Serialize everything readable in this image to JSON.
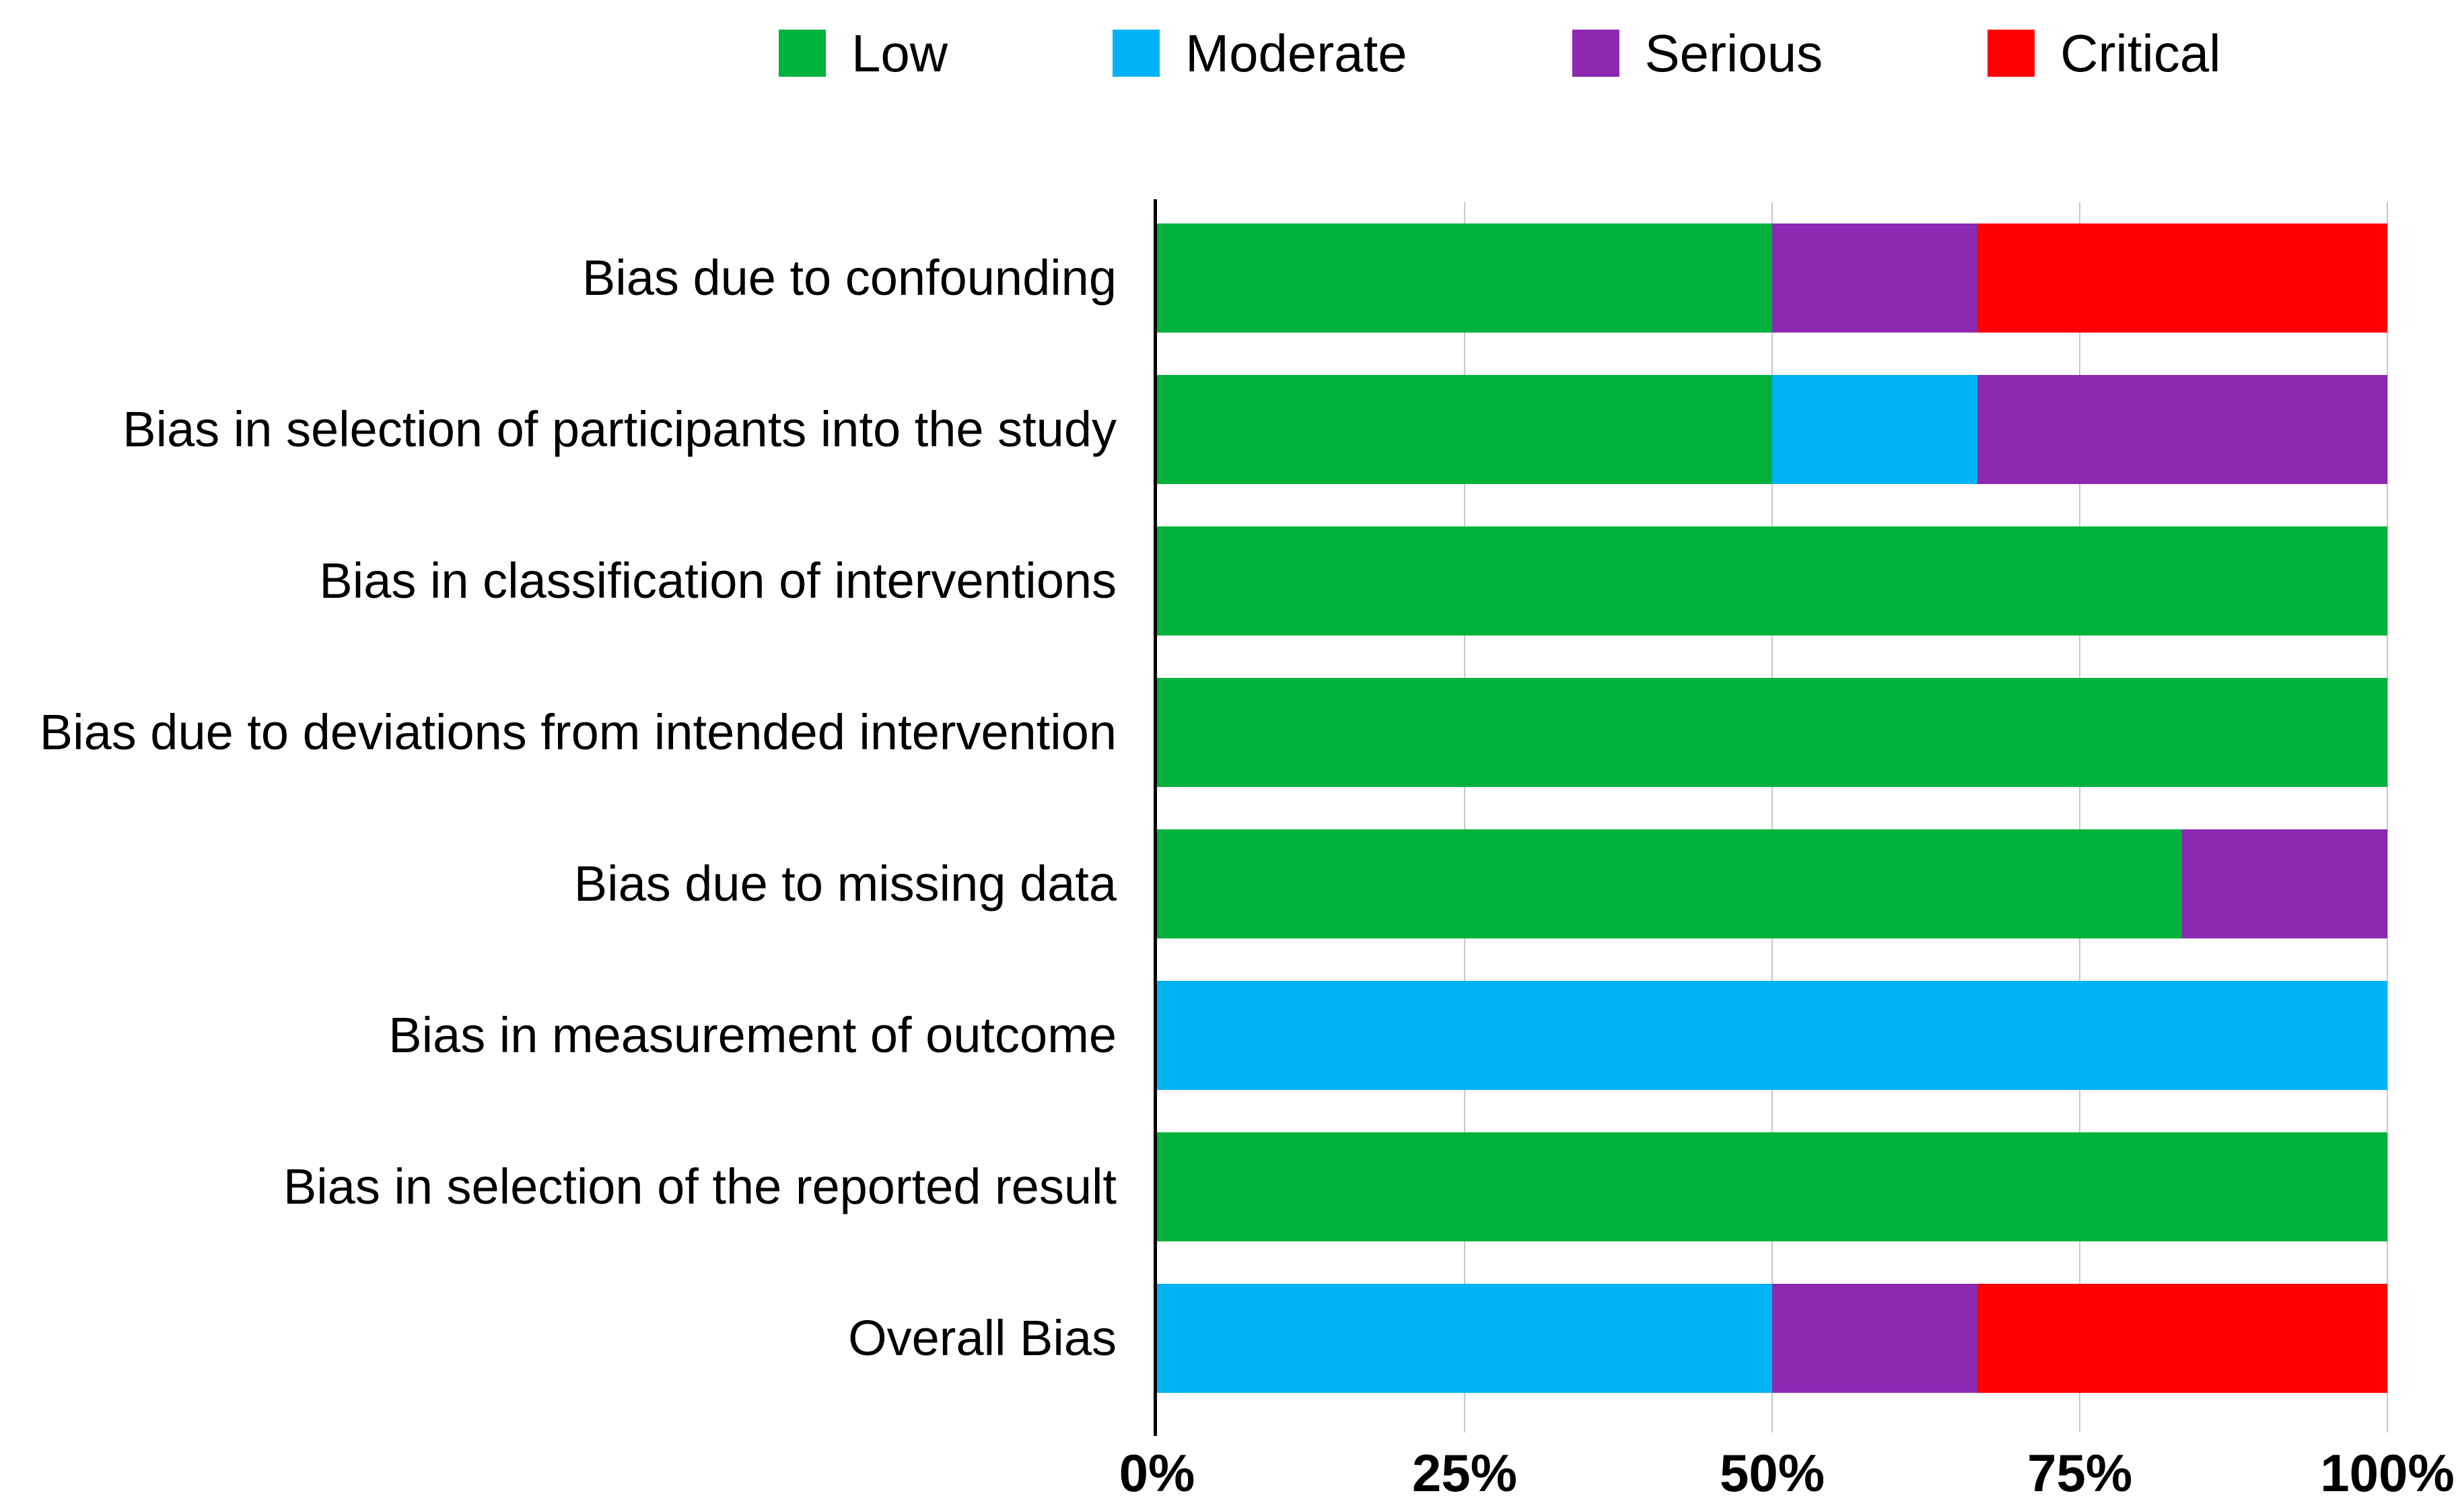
{
  "legend": {
    "items": [
      {
        "label": "Low",
        "color": "#00B23C"
      },
      {
        "label": "Moderate",
        "color": "#00B2F6"
      },
      {
        "label": "Serious",
        "color": "#8D28B1"
      },
      {
        "label": "Critical",
        "color": "#FF0000"
      }
    ]
  },
  "chart_data": {
    "type": "bar",
    "subtype": "horizontal_stacked_percentage",
    "title": "",
    "xlabel": "",
    "ylabel": "",
    "xlim": [
      0,
      100
    ],
    "grid": true,
    "legend_position": "top",
    "categories": [
      "Bias due to confounding",
      "Bias in selection of participants into the study",
      "Bias in classification of interventions",
      "Bias due to deviations from intended intervention",
      "Bias due to missing data",
      "Bias in measurement of outcome",
      "Bias in selection of the reported result",
      "Overall Bias"
    ],
    "series": [
      {
        "name": "Low",
        "color": "#00B23C",
        "values": [
          50,
          50,
          100,
          100,
          83.3,
          0,
          100,
          0
        ]
      },
      {
        "name": "Moderate",
        "color": "#00B2F6",
        "values": [
          0,
          16.7,
          0,
          0,
          0,
          100,
          0,
          50
        ]
      },
      {
        "name": "Serious",
        "color": "#8D28B1",
        "values": [
          16.7,
          33.3,
          0,
          0,
          16.7,
          0,
          0,
          16.7
        ]
      },
      {
        "name": "Critical",
        "color": "#FF0000",
        "values": [
          33.3,
          0,
          0,
          0,
          0,
          0,
          0,
          33.3
        ]
      }
    ],
    "x_ticks": [
      {
        "label": "0%",
        "pct": 0
      },
      {
        "label": "25%",
        "pct": 25
      },
      {
        "label": "50%",
        "pct": 50
      },
      {
        "label": "75%",
        "pct": 75
      },
      {
        "label": "100%",
        "pct": 100
      }
    ],
    "colors": {
      "gridline": "#c7c7c7",
      "axis": "#000000",
      "background": "#ffffff",
      "text": "#000000"
    }
  }
}
